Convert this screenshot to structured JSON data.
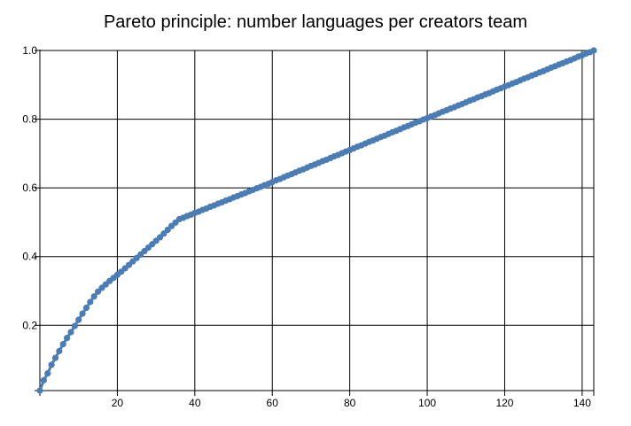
{
  "chart_data": {
    "type": "line",
    "title": "Pareto principle: number languages per creators team",
    "xlabel": "",
    "ylabel": "",
    "xlim": [
      0,
      143
    ],
    "ylim": [
      0.01,
      1.0
    ],
    "x_ticks": [
      20,
      40,
      60,
      80,
      100,
      120,
      140
    ],
    "y_ticks": [
      0.2,
      0.4,
      0.6,
      0.8,
      1.0
    ],
    "x_tick_labels": [
      "20",
      "40",
      "60",
      "80",
      "100",
      "120",
      "140"
    ],
    "y_tick_labels": [
      "0.2",
      "0.4",
      "0.6",
      "0.8",
      "1.0"
    ],
    "grid": true,
    "markers": "circle",
    "color": "#4a7db5",
    "series": [
      {
        "x": [
          0,
          1,
          2,
          3,
          4,
          5,
          6,
          7,
          8,
          9,
          10,
          11,
          12,
          13,
          14,
          15,
          16,
          17,
          18,
          19,
          20,
          21,
          22,
          23,
          24,
          25,
          26,
          27,
          28,
          29,
          30,
          31,
          32,
          33,
          34,
          35,
          36,
          37,
          38,
          39,
          40,
          41,
          42,
          43,
          44,
          45,
          46,
          47,
          48,
          49,
          50,
          51,
          52,
          53,
          54,
          55,
          56,
          57,
          58,
          59,
          60,
          61,
          62,
          63,
          64,
          65,
          66,
          67,
          68,
          69,
          70,
          71,
          72,
          73,
          74,
          75,
          76,
          77,
          78,
          79,
          80,
          81,
          82,
          83,
          84,
          85,
          86,
          87,
          88,
          89,
          90,
          91,
          92,
          93,
          94,
          95,
          96,
          97,
          98,
          99,
          100,
          101,
          102,
          103,
          104,
          105,
          106,
          107,
          108,
          109,
          110,
          111,
          112,
          113,
          114,
          115,
          116,
          117,
          118,
          119,
          120,
          121,
          122,
          123,
          124,
          125,
          126,
          127,
          128,
          129,
          130,
          131,
          132,
          133,
          134,
          135,
          136,
          137,
          138,
          139,
          140,
          141,
          142,
          143
        ],
        "y": [
          0.01,
          0.04,
          0.06,
          0.085,
          0.105,
          0.125,
          0.145,
          0.163,
          0.18,
          0.198,
          0.216,
          0.234,
          0.251,
          0.268,
          0.284,
          0.298,
          0.309,
          0.319,
          0.329,
          0.338,
          0.347,
          0.356,
          0.366,
          0.376,
          0.386,
          0.396,
          0.406,
          0.416,
          0.426,
          0.436,
          0.446,
          0.456,
          0.467,
          0.478,
          0.489,
          0.499,
          0.509,
          0.513,
          0.518,
          0.522,
          0.527,
          0.531,
          0.536,
          0.54,
          0.545,
          0.549,
          0.554,
          0.558,
          0.563,
          0.567,
          0.572,
          0.576,
          0.581,
          0.585,
          0.59,
          0.594,
          0.599,
          0.603,
          0.608,
          0.612,
          0.617,
          0.622,
          0.626,
          0.631,
          0.636,
          0.64,
          0.645,
          0.65,
          0.654,
          0.659,
          0.664,
          0.668,
          0.673,
          0.678,
          0.682,
          0.687,
          0.692,
          0.696,
          0.701,
          0.706,
          0.71,
          0.715,
          0.72,
          0.724,
          0.729,
          0.734,
          0.738,
          0.743,
          0.748,
          0.752,
          0.757,
          0.762,
          0.766,
          0.771,
          0.776,
          0.78,
          0.785,
          0.79,
          0.794,
          0.799,
          0.803,
          0.808,
          0.812,
          0.817,
          0.822,
          0.826,
          0.831,
          0.835,
          0.84,
          0.844,
          0.849,
          0.854,
          0.858,
          0.863,
          0.867,
          0.872,
          0.876,
          0.881,
          0.886,
          0.89,
          0.895,
          0.899,
          0.904,
          0.908,
          0.913,
          0.918,
          0.922,
          0.927,
          0.931,
          0.936,
          0.94,
          0.945,
          0.95,
          0.954,
          0.959,
          0.963,
          0.968,
          0.972,
          0.977,
          0.982,
          0.986,
          0.991,
          0.995,
          1.0
        ]
      }
    ]
  }
}
